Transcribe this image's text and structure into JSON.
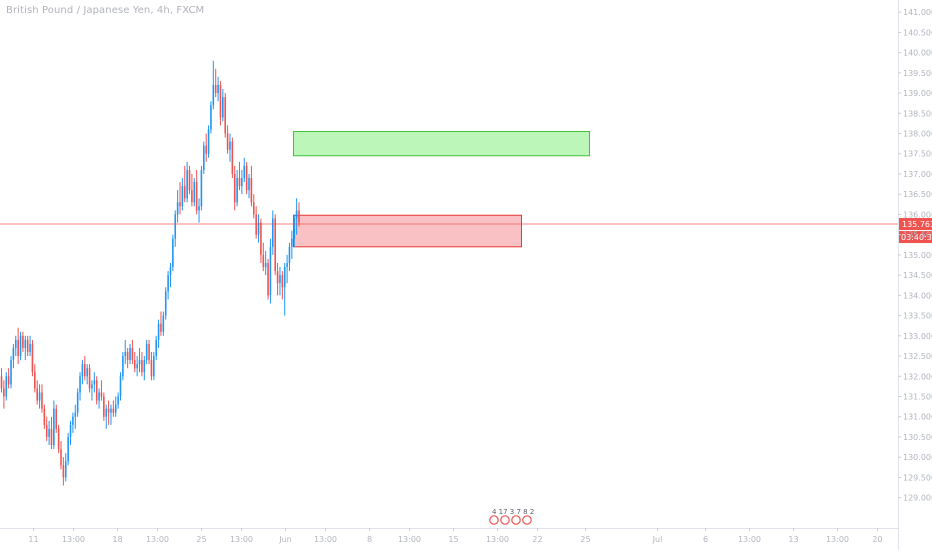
{
  "chart_data": {
    "type": "candlestick",
    "title": "British Pound / Japanese Yen, 4h, FXCM",
    "colors": {
      "up": "#2196f3",
      "down": "#ef5350",
      "axis_text": "#b2b5be",
      "support_fill": "#f7a7aa",
      "support_border": "#e53935",
      "resistance_fill": "#a5f3a1",
      "resistance_border": "#43c23c",
      "price_line": "#ef5350",
      "grid": "#eef0f3"
    },
    "ylim": [
      128.25,
      141.3
    ],
    "y_ticks": [
      "129.000",
      "129.500",
      "130.000",
      "130.500",
      "131.000",
      "131.500",
      "132.000",
      "132.500",
      "133.000",
      "133.500",
      "134.000",
      "134.500",
      "135.000",
      "135.500",
      "136.000",
      "136.500",
      "137.000",
      "137.500",
      "138.000",
      "138.500",
      "139.000",
      "139.500",
      "140.000",
      "140.500",
      "141.000"
    ],
    "y_tick_values": [
      129.0,
      129.5,
      130.0,
      130.5,
      131.0,
      131.5,
      132.0,
      132.5,
      133.0,
      133.5,
      134.0,
      134.5,
      135.0,
      135.5,
      136.0,
      136.5,
      137.0,
      137.5,
      138.0,
      138.5,
      139.0,
      139.5,
      140.0,
      140.5,
      141.0
    ],
    "xlim": [
      0,
      220
    ],
    "x_ticks": [
      {
        "label": "11",
        "x": 8
      },
      {
        "label": "13:00",
        "x": 18
      },
      {
        "label": "18",
        "x": 29
      },
      {
        "label": "13:00",
        "x": 39
      },
      {
        "label": "25",
        "x": 50
      },
      {
        "label": "13:00",
        "x": 60
      },
      {
        "label": "Jun",
        "x": 71
      },
      {
        "label": "13:00",
        "x": 81
      },
      {
        "label": "8",
        "x": 92
      },
      {
        "label": "13:00",
        "x": 102
      },
      {
        "label": "15",
        "x": 113
      },
      {
        "label": "13:00",
        "x": 124
      },
      {
        "label": "22",
        "x": 134
      },
      {
        "label": "25",
        "x": 146
      },
      {
        "label": "Jul",
        "x": 164
      },
      {
        "label": "6",
        "x": 176
      },
      {
        "label": "13:00",
        "x": 187
      },
      {
        "label": "13",
        "x": 198
      },
      {
        "label": "13:00",
        "x": 209
      },
      {
        "label": "20",
        "x": 219
      }
    ],
    "last_price": "135.763",
    "last_price_value": 135.763,
    "countdown": "03:40:36",
    "zones": [
      {
        "name": "resistance-zone",
        "x1": 73,
        "x2": 147,
        "y_low": 137.45,
        "y_high": 138.05
      },
      {
        "name": "support-zone",
        "x1": 73,
        "x2": 130,
        "y_low": 135.2,
        "y_high": 135.98
      }
    ],
    "events_marker": "4 17 3 7 8 2",
    "candles": [
      [
        0,
        132.0,
        132.2,
        131.6,
        131.7
      ],
      [
        1,
        131.7,
        131.9,
        131.2,
        131.5
      ],
      [
        2,
        131.5,
        132.1,
        131.4,
        132.0
      ],
      [
        3,
        132.0,
        132.2,
        131.7,
        131.8
      ],
      [
        4,
        131.8,
        132.5,
        131.7,
        132.4
      ],
      [
        5,
        132.4,
        132.8,
        132.2,
        132.7
      ],
      [
        6,
        132.7,
        133.0,
        132.5,
        132.9
      ],
      [
        7,
        132.9,
        133.2,
        132.3,
        132.5
      ],
      [
        8,
        132.5,
        133.1,
        132.4,
        133.0
      ],
      [
        9,
        133.0,
        133.1,
        132.6,
        132.7
      ],
      [
        10,
        132.7,
        133.0,
        132.4,
        132.9
      ],
      [
        11,
        132.9,
        133.0,
        132.5,
        132.6
      ],
      [
        12,
        132.6,
        133.0,
        132.5,
        132.8
      ],
      [
        13,
        132.8,
        132.9,
        132.0,
        132.1
      ],
      [
        14,
        132.1,
        132.3,
        131.6,
        131.7
      ],
      [
        15,
        131.7,
        131.9,
        131.3,
        131.4
      ],
      [
        16,
        131.4,
        131.8,
        131.2,
        131.6
      ],
      [
        17,
        131.6,
        131.8,
        131.1,
        131.2
      ],
      [
        18,
        131.2,
        131.3,
        130.7,
        130.8
      ],
      [
        19,
        130.8,
        131.0,
        130.4,
        130.5
      ],
      [
        20,
        130.5,
        130.9,
        130.3,
        130.7
      ],
      [
        21,
        130.7,
        131.0,
        130.2,
        130.3
      ],
      [
        22,
        130.3,
        131.4,
        130.2,
        131.2
      ],
      [
        23,
        131.2,
        131.3,
        130.6,
        130.7
      ],
      [
        24,
        130.7,
        130.8,
        130.1,
        130.2
      ],
      [
        25,
        130.2,
        130.4,
        129.7,
        129.8
      ],
      [
        26,
        129.8,
        130.0,
        129.3,
        129.5
      ],
      [
        27,
        129.5,
        130.1,
        129.4,
        129.9
      ],
      [
        28,
        129.9,
        130.6,
        129.8,
        130.5
      ],
      [
        29,
        130.5,
        130.9,
        130.3,
        130.8
      ],
      [
        30,
        130.8,
        131.1,
        130.6,
        131.0
      ],
      [
        31,
        131.0,
        131.3,
        130.7,
        131.1
      ],
      [
        32,
        131.1,
        131.7,
        131.0,
        131.6
      ],
      [
        33,
        131.6,
        132.1,
        131.4,
        132.0
      ],
      [
        34,
        132.0,
        132.4,
        131.8,
        132.3
      ],
      [
        35,
        132.3,
        132.5,
        131.9,
        132.0
      ],
      [
        36,
        132.0,
        132.3,
        131.8,
        132.2
      ],
      [
        37,
        132.2,
        132.3,
        131.6,
        131.7
      ],
      [
        38,
        131.7,
        131.9,
        131.4,
        131.8
      ],
      [
        39,
        131.8,
        132.1,
        131.6,
        131.9
      ],
      [
        40,
        131.9,
        132.0,
        131.3,
        131.4
      ],
      [
        41,
        131.4,
        131.7,
        131.2,
        131.6
      ],
      [
        42,
        131.6,
        131.9,
        131.4,
        131.5
      ],
      [
        43,
        131.5,
        131.6,
        130.9,
        131.0
      ],
      [
        44,
        131.0,
        131.3,
        130.7,
        131.2
      ],
      [
        45,
        131.2,
        131.4,
        130.8,
        131.1
      ],
      [
        46,
        131.1,
        131.3,
        130.8,
        131.2
      ],
      [
        47,
        131.2,
        131.4,
        131.0,
        131.1
      ],
      [
        48,
        131.1,
        131.5,
        131.0,
        131.3
      ],
      [
        49,
        131.3,
        131.6,
        131.2,
        131.5
      ],
      [
        50,
        131.5,
        132.1,
        131.4,
        132.0
      ],
      [
        51,
        132.0,
        132.6,
        131.9,
        132.5
      ],
      [
        52,
        132.5,
        132.9,
        132.3,
        132.6
      ],
      [
        53,
        132.6,
        132.7,
        132.2,
        132.4
      ],
      [
        54,
        132.4,
        132.8,
        132.3,
        132.7
      ],
      [
        55,
        132.7,
        132.9,
        132.3,
        132.4
      ],
      [
        56,
        132.4,
        132.6,
        132.1,
        132.2
      ],
      [
        57,
        132.2,
        132.5,
        132.0,
        132.3
      ],
      [
        58,
        132.3,
        132.7,
        132.1,
        132.4
      ],
      [
        59,
        132.4,
        132.6,
        132.0,
        132.1
      ],
      [
        60,
        132.1,
        132.5,
        131.9,
        132.4
      ],
      [
        61,
        132.4,
        132.9,
        132.3,
        132.8
      ],
      [
        62,
        132.8,
        132.9,
        132.3,
        132.4
      ],
      [
        63,
        132.4,
        132.6,
        131.9,
        132.0
      ],
      [
        64,
        132.0,
        132.6,
        131.9,
        132.5
      ],
      [
        65,
        132.5,
        133.0,
        132.4,
        132.9
      ],
      [
        66,
        132.9,
        133.4,
        132.7,
        133.3
      ],
      [
        67,
        133.3,
        133.6,
        133.0,
        133.1
      ],
      [
        68,
        133.1,
        133.6,
        133.0,
        133.5
      ],
      [
        69,
        133.5,
        134.2,
        133.4,
        134.1
      ],
      [
        70,
        134.1,
        134.6,
        133.9,
        134.5
      ],
      [
        71,
        134.5,
        134.8,
        134.2,
        134.7
      ],
      [
        72,
        134.7,
        135.5,
        134.6,
        135.4
      ],
      [
        73,
        135.4,
        136.1,
        135.2,
        136.0
      ],
      [
        74,
        136.0,
        136.6,
        135.8,
        136.3
      ],
      [
        75,
        136.3,
        136.8,
        136.0,
        136.2
      ],
      [
        76,
        136.2,
        136.9,
        136.1,
        136.7
      ],
      [
        77,
        136.7,
        137.2,
        136.3,
        136.4
      ],
      [
        78,
        136.4,
        137.3,
        136.3,
        137.1
      ],
      [
        79,
        137.1,
        137.2,
        136.5,
        136.6
      ],
      [
        80,
        136.6,
        137.0,
        136.2,
        136.3
      ],
      [
        81,
        136.3,
        136.9,
        136.2,
        136.8
      ],
      [
        82,
        136.8,
        137.1,
        136.0,
        136.1
      ],
      [
        83,
        136.1,
        136.4,
        135.8,
        136.2
      ],
      [
        84,
        136.2,
        137.2,
        136.1,
        137.1
      ],
      [
        85,
        137.1,
        137.8,
        137.0,
        137.7
      ],
      [
        86,
        137.7,
        138.0,
        137.3,
        137.5
      ],
      [
        87,
        137.5,
        138.2,
        137.4,
        138.1
      ],
      [
        88,
        138.1,
        138.8,
        138.0,
        138.7
      ],
      [
        89,
        138.7,
        139.8,
        138.6,
        139.2
      ],
      [
        90,
        139.2,
        139.6,
        138.9,
        139.0
      ],
      [
        91,
        139.0,
        139.4,
        138.8,
        139.2
      ],
      [
        92,
        139.2,
        139.3,
        138.2,
        138.4
      ],
      [
        93,
        138.4,
        139.1,
        138.3,
        138.9
      ],
      [
        94,
        138.9,
        139.0,
        137.9,
        138.0
      ],
      [
        95,
        138.0,
        138.2,
        137.5,
        137.6
      ],
      [
        96,
        137.6,
        138.0,
        137.3,
        137.8
      ],
      [
        97,
        137.8,
        137.9,
        136.9,
        137.0
      ],
      [
        98,
        137.0,
        137.2,
        136.1,
        136.3
      ],
      [
        99,
        136.3,
        137.1,
        136.2,
        136.9
      ],
      [
        100,
        136.9,
        137.3,
        136.6,
        136.7
      ],
      [
        101,
        136.7,
        137.1,
        136.5,
        136.9
      ],
      [
        102,
        136.9,
        137.4,
        136.8,
        137.2
      ],
      [
        103,
        137.2,
        137.3,
        136.5,
        136.6
      ],
      [
        104,
        136.6,
        137.0,
        136.4,
        136.9
      ],
      [
        105,
        136.9,
        137.2,
        136.2,
        136.3
      ],
      [
        106,
        136.3,
        136.5,
        135.9,
        136.0
      ],
      [
        107,
        136.0,
        136.2,
        135.4,
        135.5
      ],
      [
        108,
        135.5,
        136.0,
        135.3,
        135.8
      ],
      [
        109,
        135.8,
        135.9,
        134.8,
        135.0
      ],
      [
        110,
        135.0,
        135.3,
        134.6,
        134.7
      ],
      [
        111,
        134.7,
        135.1,
        134.5,
        134.8
      ],
      [
        112,
        134.8,
        134.9,
        133.9,
        134.0
      ],
      [
        113,
        134.0,
        135.4,
        133.8,
        135.2
      ],
      [
        114,
        135.2,
        136.1,
        135.0,
        135.9
      ],
      [
        115,
        135.9,
        136.0,
        134.5,
        134.6
      ],
      [
        116,
        134.6,
        134.8,
        134.0,
        134.3
      ],
      [
        117,
        134.3,
        134.7,
        134.0,
        134.5
      ],
      [
        118,
        134.5,
        134.6,
        133.9,
        134.2
      ],
      [
        119,
        134.2,
        134.8,
        133.5,
        134.7
      ],
      [
        120,
        134.7,
        135.0,
        134.3,
        134.8
      ],
      [
        121,
        134.8,
        135.3,
        134.6,
        135.2
      ],
      [
        122,
        135.2,
        135.6,
        134.9,
        135.4
      ],
      [
        123,
        135.4,
        136.0,
        135.2,
        135.9
      ],
      [
        124,
        135.9,
        136.4,
        135.5,
        136.1
      ],
      [
        125,
        136.1,
        136.3,
        135.7,
        135.8
      ]
    ]
  }
}
